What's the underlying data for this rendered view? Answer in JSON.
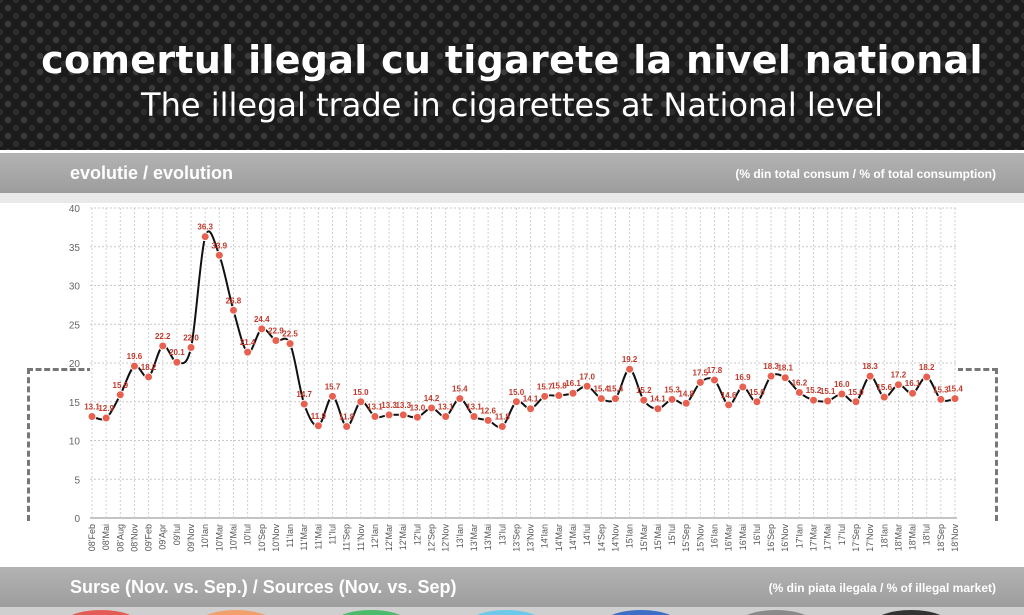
{
  "header": {
    "title_ro": "comertul ilegal cu tigarete la nivel national",
    "title_en": "The illegal trade in cigarettes at National level"
  },
  "section1": {
    "label": "evolutie / evolution",
    "unit": "(% din total consum / % of total consumption)"
  },
  "section2": {
    "label": "Surse (Nov. vs. Sep.) / Sources (Nov. vs. Sep)",
    "unit": "(% din piata ilegala / % of illegal market)"
  },
  "colors": {
    "line": "#111111",
    "marker": "#e8604f",
    "label": "#c0392b",
    "bubbles": [
      "#e35b55",
      "#f2a06b",
      "#4cb96b",
      "#6ec9e8",
      "#3e6fc4",
      "#8a8a8a",
      "#333333"
    ]
  },
  "chart_data": {
    "type": "line",
    "ylim": [
      0,
      40
    ],
    "yticks": [
      0,
      5,
      10,
      15,
      20,
      25,
      30,
      35,
      40
    ],
    "grid": true,
    "categories": [
      "08'Feb",
      "08'Mai",
      "08'Aug",
      "08'Nov",
      "09'Feb",
      "09'Apr",
      "09'Iul",
      "09'Nov",
      "10'Ian",
      "10'Mar",
      "10'Mai",
      "10'Iul",
      "10'Sep",
      "10'Nov",
      "11'Ian",
      "11'Mar",
      "11'Mai",
      "11'Iul",
      "11'Sep",
      "11'Nov",
      "12'Ian",
      "12'Mar",
      "12'Mai",
      "12'Iul",
      "12'Sep",
      "12'Nov",
      "13'Ian",
      "13'Mar",
      "13'Mai",
      "13'Iul",
      "13'Sep",
      "13'Nov",
      "14'Ian",
      "14'Mar",
      "14'Mai",
      "14'Iul",
      "14'Sep",
      "14'Nov",
      "15'Ian",
      "15'Mar",
      "15'Mai",
      "15'Iul",
      "15'Sep",
      "15'Nov",
      "16'Ian",
      "16'Mar",
      "16'Mai",
      "16'Iul",
      "16'Sep",
      "16'Nov",
      "17'Ian",
      "17'Mar",
      "17'Mai",
      "17'Iul",
      "17'Sep",
      "17'Nov",
      "18'Ian",
      "18'Mar",
      "18'Mai",
      "18'Iul",
      "18'Sep",
      "18'Nov"
    ],
    "values": [
      13.1,
      12.9,
      15.9,
      19.6,
      18.2,
      22.2,
      20.1,
      22.0,
      36.3,
      33.9,
      26.8,
      21.4,
      24.4,
      22.9,
      22.5,
      14.7,
      11.9,
      15.7,
      11.8,
      15.0,
      13.1,
      13.3,
      13.3,
      13.0,
      14.2,
      13.1,
      15.4,
      13.1,
      12.6,
      11.8,
      15.0,
      14.1,
      15.7,
      15.8,
      16.1,
      17.0,
      15.4,
      15.4,
      19.2,
      15.2,
      14.1,
      15.3,
      14.8,
      17.5,
      17.8,
      14.6,
      16.9,
      15.0,
      18.3,
      18.1,
      16.2,
      15.2,
      15.1,
      16.0,
      15.0,
      18.3,
      15.6,
      17.2,
      16.1,
      18.2,
      15.3,
      15.4
    ],
    "labels": [
      "13.1",
      "12.9",
      "15.9",
      "19.6",
      "18.2",
      "22.2",
      "20.1",
      "22.0",
      "36.3",
      "33.9",
      "26.8",
      "21.4",
      "24.4",
      "22.9",
      "22.5",
      "14.7",
      "11.9",
      "15.7",
      "11.8",
      "15.0",
      "13.1",
      "13.3",
      "13.3",
      "13.0",
      "14.2",
      "13.1",
      "15.4",
      "13.1",
      "12.6",
      "11.8",
      "15.0",
      "14.1",
      "15.7",
      "15.8",
      "16.1",
      "17.0",
      "15.4",
      "15.4",
      "19.2",
      "15.2",
      "14.1",
      "15.3",
      "14.8",
      "17.5",
      "17.8",
      "14.6",
      "16.9",
      "15.0",
      "18.3",
      "18.1",
      "16.2",
      "15.2",
      "15.1",
      "16.0",
      "15.0",
      "18.3",
      "15.6",
      "17.2",
      "16.1",
      "18.2",
      "15.3",
      "15.4"
    ]
  }
}
